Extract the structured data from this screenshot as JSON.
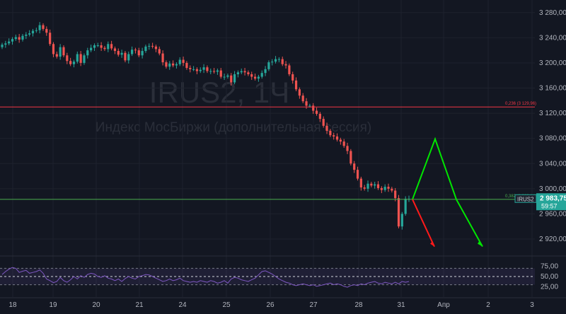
{
  "watermark": {
    "symbol": "IRUS2, 1Ч",
    "name": "Индекс МосБиржи (дополнительная сессия)"
  },
  "price_axis": {
    "labels": [
      "3 280,00",
      "3 240,00",
      "3 200,00",
      "3 160,00",
      "3 120,00",
      "3 080,00",
      "3 040,00",
      "3 000,00",
      "2 960,00",
      "2 920,00"
    ]
  },
  "rsi_axis": {
    "labels": [
      "75,00",
      "50,00",
      "25,00"
    ]
  },
  "time_axis": {
    "labels": [
      "18",
      "19",
      "20",
      "21",
      "24",
      "25",
      "26",
      "27",
      "28",
      "31",
      "Апр",
      "2",
      "3"
    ]
  },
  "fib_levels": [
    {
      "label": "0,236 (3 129,96)",
      "color": "#f23645"
    },
    {
      "label": "0,382 (2 983,14)",
      "color": "#4caf50"
    }
  ],
  "current_price": {
    "symbol": "IRUS2",
    "price": "2 983,75",
    "countdown": "59:57",
    "color": "#26a69a"
  },
  "colors": {
    "up": "#26a69a",
    "down": "#ef5350",
    "rsi_line": "#7e57c2",
    "forecast_up": "#00e600",
    "forecast_down": "#ff1a1a"
  },
  "chart_data": {
    "type": "candlestick",
    "title": "",
    "price_range": [
      2893,
      3300
    ],
    "rsi_range": [
      0,
      100
    ],
    "x_ticks": [
      "18",
      "19",
      "20",
      "21",
      "24",
      "25",
      "26",
      "27",
      "28",
      "31",
      "Апр",
      "2",
      "3"
    ],
    "close_series": [
      3229,
      3231,
      3234,
      3238,
      3241,
      3237,
      3243,
      3245,
      3247,
      3251,
      3252,
      3260,
      3254,
      3248,
      3230,
      3214,
      3210,
      3225,
      3212,
      3203,
      3198,
      3202,
      3214,
      3200,
      3212,
      3220,
      3224,
      3228,
      3228,
      3224,
      3222,
      3230,
      3223,
      3219,
      3213,
      3216,
      3204,
      3214,
      3221,
      3220,
      3212,
      3219,
      3226,
      3227,
      3226,
      3222,
      3215,
      3201,
      3194,
      3199,
      3196,
      3198,
      3205,
      3200,
      3192,
      3190,
      3190,
      3187,
      3189,
      3193,
      3187,
      3187,
      3186,
      3188,
      3178,
      3178,
      3180,
      3169,
      3182,
      3185,
      3187,
      3185,
      3182,
      3178,
      3175,
      3178,
      3184,
      3190,
      3201,
      3202,
      3206,
      3206,
      3198,
      3196,
      3182,
      3172,
      3158,
      3148,
      3139,
      3132,
      3132,
      3124,
      3119,
      3111,
      3100,
      3092,
      3085,
      3083,
      3078,
      3075,
      3068,
      3060,
      3040,
      3030,
      3016,
      3002,
      3000,
      3008,
      3005,
      3007,
      3001,
      2998,
      3003,
      3000,
      2997,
      2985,
      2940,
      2960,
      2984,
      2984
    ],
    "forecast": {
      "green_path_prices": [
        2983,
        3079,
        2983,
        2908
      ],
      "red_path_prices": [
        2983,
        2908
      ]
    },
    "rsi_series": [
      55,
      62,
      68,
      72,
      70,
      60,
      63,
      65,
      58,
      60,
      62,
      66,
      58,
      44,
      40,
      35,
      38,
      48,
      40,
      36,
      42,
      50,
      44,
      52,
      48,
      55,
      58,
      56,
      50,
      48,
      52,
      46,
      44,
      40,
      44,
      38,
      45,
      50,
      46,
      44,
      50,
      52,
      55,
      54,
      50,
      46,
      42,
      38,
      40,
      44,
      40,
      42,
      46,
      40,
      38,
      36,
      38,
      36,
      40,
      38,
      36,
      40,
      38,
      34,
      36,
      40,
      34,
      44,
      48,
      46,
      42,
      40,
      38,
      42,
      46,
      54,
      62,
      64,
      60,
      56,
      50,
      44,
      40,
      36,
      34,
      30,
      28,
      30,
      32,
      30,
      28,
      30,
      26,
      28,
      30,
      32,
      34,
      30,
      32,
      30,
      26,
      24,
      28,
      30,
      28,
      32,
      30,
      34,
      36,
      38,
      34,
      32,
      36,
      34,
      32,
      36,
      32,
      38,
      36,
      38
    ],
    "rsi_levels": [
      70,
      50,
      30
    ]
  }
}
